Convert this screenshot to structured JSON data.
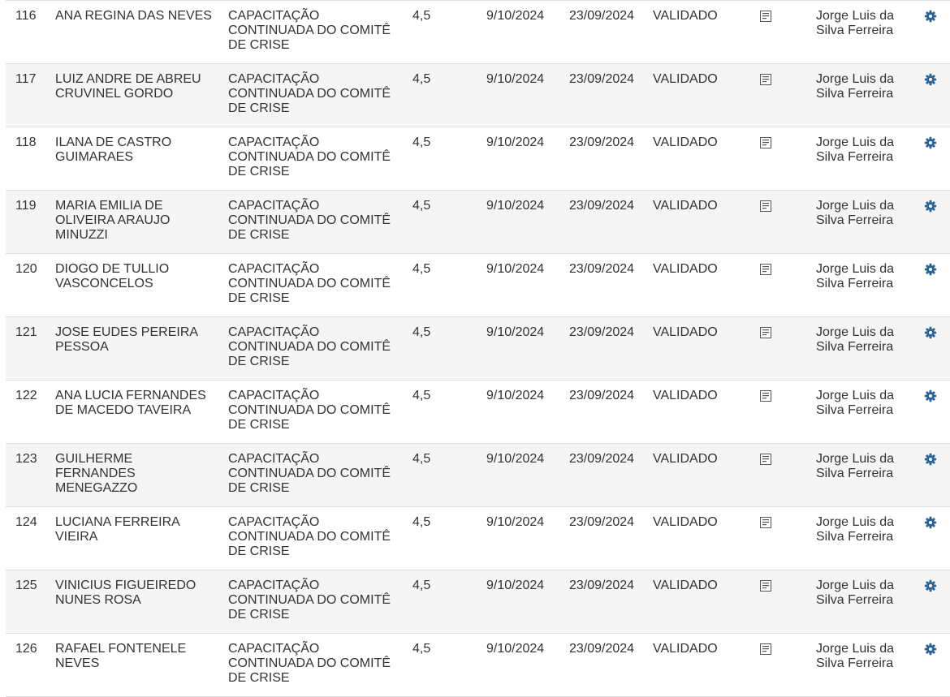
{
  "colors": {
    "row_alt_background": "#f5f5f5",
    "row_border": "#dddddd",
    "text": "#333333",
    "gear_icon": "#2a6496",
    "doc_icon": "#555555"
  },
  "icons": {
    "certificate": "doc-list-icon",
    "actions": "gear-icon"
  },
  "rows": [
    {
      "num": "116",
      "name": "ANA REGINA DAS NEVES",
      "course": "CAPACITAÇÃO CONTINUADA DO COMITÊ DE CRISE",
      "hours": "4,5",
      "date_issue": "9/10/2024",
      "date_event": "23/09/2024",
      "status": "VALIDADO",
      "validator": "Jorge Luis da Silva Ferreira"
    },
    {
      "num": "117",
      "name": "LUIZ ANDRE DE ABREU CRUVINEL GORDO",
      "course": "CAPACITAÇÃO CONTINUADA DO COMITÊ DE CRISE",
      "hours": "4,5",
      "date_issue": "9/10/2024",
      "date_event": "23/09/2024",
      "status": "VALIDADO",
      "validator": "Jorge Luis da Silva Ferreira"
    },
    {
      "num": "118",
      "name": "ILANA DE CASTRO GUIMARAES",
      "course": "CAPACITAÇÃO CONTINUADA DO COMITÊ DE CRISE",
      "hours": "4,5",
      "date_issue": "9/10/2024",
      "date_event": "23/09/2024",
      "status": "VALIDADO",
      "validator": "Jorge Luis da Silva Ferreira"
    },
    {
      "num": "119",
      "name": "MARIA EMILIA DE OLIVEIRA ARAUJO MINUZZI",
      "course": "CAPACITAÇÃO CONTINUADA DO COMITÊ DE CRISE",
      "hours": "4,5",
      "date_issue": "9/10/2024",
      "date_event": "23/09/2024",
      "status": "VALIDADO",
      "validator": "Jorge Luis da Silva Ferreira"
    },
    {
      "num": "120",
      "name": "DIOGO DE TULLIO VASCONCELOS",
      "course": "CAPACITAÇÃO CONTINUADA DO COMITÊ DE CRISE",
      "hours": "4,5",
      "date_issue": "9/10/2024",
      "date_event": "23/09/2024",
      "status": "VALIDADO",
      "validator": "Jorge Luis da Silva Ferreira"
    },
    {
      "num": "121",
      "name": "JOSE EUDES PEREIRA PESSOA",
      "course": "CAPACITAÇÃO CONTINUADA DO COMITÊ DE CRISE",
      "hours": "4,5",
      "date_issue": "9/10/2024",
      "date_event": "23/09/2024",
      "status": "VALIDADO",
      "validator": "Jorge Luis da Silva Ferreira"
    },
    {
      "num": "122",
      "name": "ANA LUCIA FERNANDES DE MACEDO TAVEIRA",
      "course": "CAPACITAÇÃO CONTINUADA DO COMITÊ DE CRISE",
      "hours": "4,5",
      "date_issue": "9/10/2024",
      "date_event": "23/09/2024",
      "status": "VALIDADO",
      "validator": "Jorge Luis da Silva Ferreira"
    },
    {
      "num": "123",
      "name": "GUILHERME FERNANDES MENEGAZZO",
      "course": "CAPACITAÇÃO CONTINUADA DO COMITÊ DE CRISE",
      "hours": "4,5",
      "date_issue": "9/10/2024",
      "date_event": "23/09/2024",
      "status": "VALIDADO",
      "validator": "Jorge Luis da Silva Ferreira"
    },
    {
      "num": "124",
      "name": "LUCIANA FERREIRA VIEIRA",
      "course": "CAPACITAÇÃO CONTINUADA DO COMITÊ DE CRISE",
      "hours": "4,5",
      "date_issue": "9/10/2024",
      "date_event": "23/09/2024",
      "status": "VALIDADO",
      "validator": "Jorge Luis da Silva Ferreira"
    },
    {
      "num": "125",
      "name": "VINICIUS FIGUEIREDO NUNES ROSA",
      "course": "CAPACITAÇÃO CONTINUADA DO COMITÊ DE CRISE",
      "hours": "4,5",
      "date_issue": "9/10/2024",
      "date_event": "23/09/2024",
      "status": "VALIDADO",
      "validator": "Jorge Luis da Silva Ferreira"
    },
    {
      "num": "126",
      "name": "RAFAEL FONTENELE NEVES",
      "course": "CAPACITAÇÃO CONTINUADA DO COMITÊ DE CRISE",
      "hours": "4,5",
      "date_issue": "9/10/2024",
      "date_event": "23/09/2024",
      "status": "VALIDADO",
      "validator": "Jorge Luis da Silva Ferreira"
    }
  ]
}
